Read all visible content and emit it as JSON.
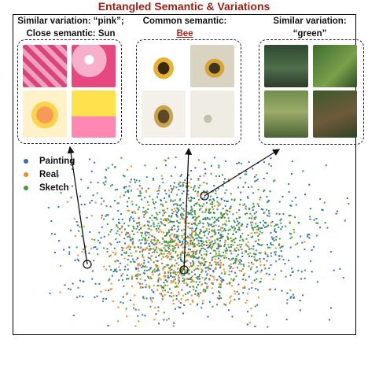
{
  "title": "Entangled Semantic & Variations",
  "groups": [
    {
      "caption_line1": "Similar variation: “pink”;",
      "caption_line2": "Close semantic: Sun"
    },
    {
      "caption_line1": "Common semantic:",
      "caption_line2": "Bee"
    },
    {
      "caption_line1": "Similar variation:",
      "caption_line2": "“green”"
    }
  ],
  "legend": [
    {
      "label": "Painting",
      "color": "#2f6fb5"
    },
    {
      "label": "Real",
      "color": "#f08a24"
    },
    {
      "label": "Sketch",
      "color": "#3f9e3a"
    }
  ],
  "colors": {
    "title": "#9e1f14",
    "highlight": "#b3261e"
  }
}
